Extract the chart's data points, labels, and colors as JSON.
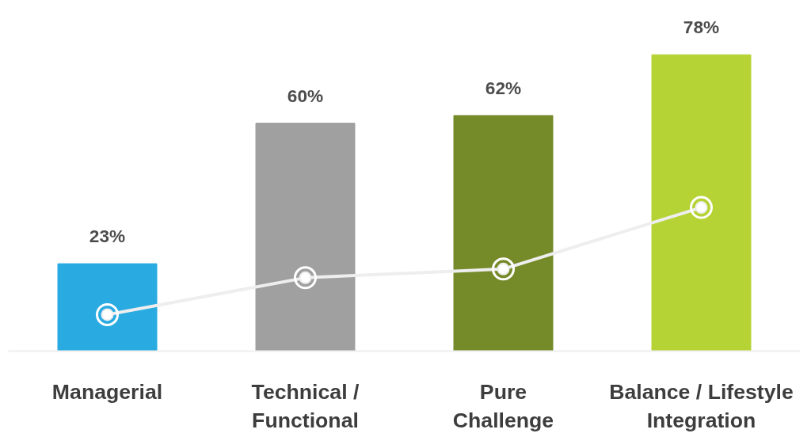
{
  "chart_data": {
    "type": "bar",
    "categories": [
      "Managerial",
      "Technical / Functional",
      "Pure Challenge",
      "Balance / Lifestyle Integration"
    ],
    "series": [
      {
        "colors": [
          "#29abe2",
          "#a0a0a0",
          "#758a28",
          "#b5d334"
        ],
        "values": [
          23,
          60,
          62,
          78
        ],
        "value_labels": [
          "23%",
          "60%",
          "62%",
          "78%"
        ]
      },
      {
        "type": "line",
        "color": "#eeeeee",
        "values": [
          9.6,
          19.3,
          21.6,
          37.8
        ],
        "marker": "circle",
        "line_style": "solid"
      }
    ],
    "grid": false
  }
}
